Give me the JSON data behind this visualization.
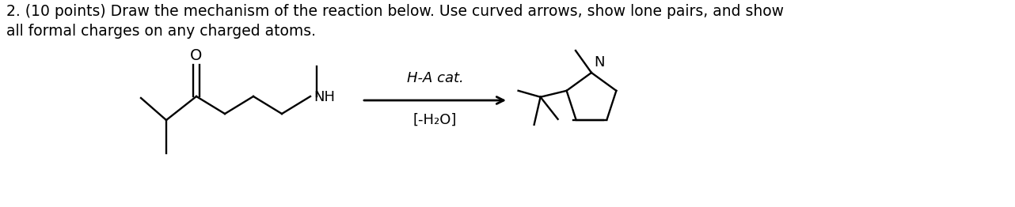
{
  "title_text": "2. (10 points) Draw the mechanism of the reaction below. Use curved arrows, show lone pairs, and show\nall formal charges on any charged atoms.",
  "above_arrow": "H-A cat.",
  "below_arrow": "[-H₂O]",
  "background": "#ffffff",
  "text_color": "#000000",
  "title_fontsize": 13.5,
  "label_fontsize": 13,
  "atom_color_N": "#000000",
  "atom_color_O": "#000000",
  "fig_width": 12.82,
  "fig_height": 2.62,
  "dpi": 100,
  "lw": 1.7
}
